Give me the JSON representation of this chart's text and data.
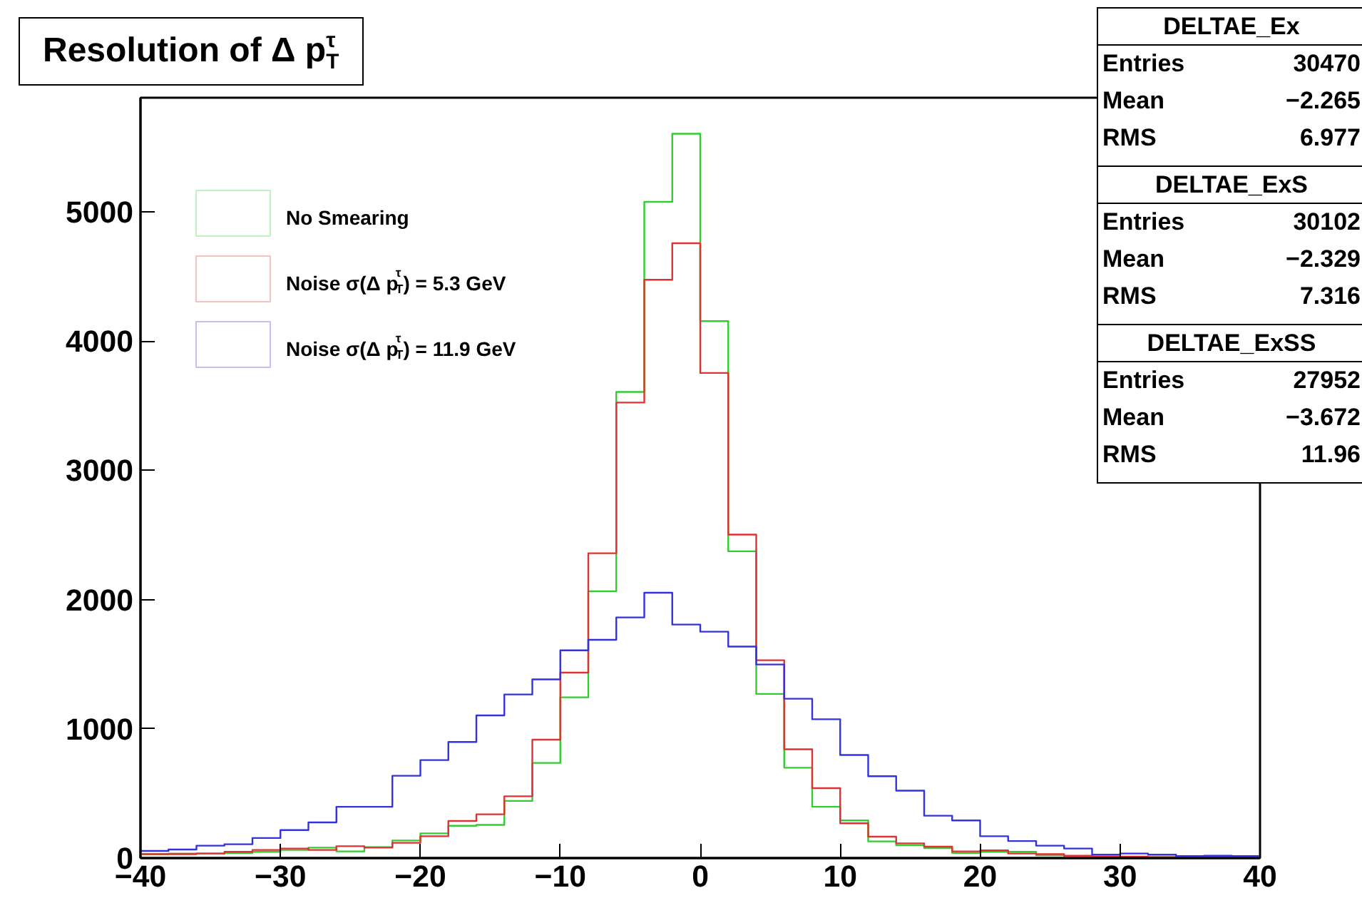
{
  "chart_data": {
    "type": "histogram",
    "title": "Resolution of Δ p$^{τ}$$_{T}$",
    "bins": [
      -40,
      -38,
      -36,
      -34,
      -32,
      -30,
      -28,
      -26,
      -24,
      -22,
      -20,
      -18,
      -16,
      -14,
      -12,
      -10,
      -8,
      -6,
      -4,
      -2,
      0,
      2,
      4,
      6,
      8,
      10,
      12,
      14,
      16,
      18,
      20,
      22,
      24,
      26,
      28,
      30,
      32,
      34,
      36,
      38,
      40
    ],
    "series": [
      {
        "name": "No Smearing",
        "color": "#33cc33",
        "values": [
          30,
          35,
          35,
          40,
          48,
          63,
          81,
          52,
          85,
          136,
          191,
          250,
          257,
          442,
          736,
          1244,
          2064,
          3607,
          5078,
          5605,
          4155,
          2374,
          1270,
          699,
          397,
          291,
          129,
          99,
          77,
          40,
          48,
          48,
          22,
          15,
          11,
          7,
          7,
          7,
          4,
          4
        ]
      },
      {
        "name": "Noise σ(Δ p$^{τ}$$_{T}$) = 5.3 GeV",
        "color": "#dd3333",
        "values": [
          30,
          30,
          35,
          48,
          63,
          74,
          63,
          92,
          81,
          118,
          169,
          287,
          339,
          478,
          916,
          1435,
          2359,
          3525,
          4475,
          4758,
          3754,
          2503,
          1531,
          842,
          541,
          269,
          166,
          114,
          88,
          52,
          59,
          35,
          30,
          18,
          11,
          11,
          7,
          7,
          7,
          7
        ]
      },
      {
        "name": "Noise σ(Δ p$^{τ}$$_{T}$) = 11.9 GeV",
        "color": "#3333dd",
        "values": [
          55,
          66,
          96,
          107,
          155,
          217,
          276,
          397,
          397,
          637,
          758,
          898,
          1104,
          1266,
          1383,
          1608,
          1689,
          1862,
          2053,
          1807,
          1752,
          1637,
          1498,
          1233,
          1074,
          798,
          633,
          522,
          328,
          291,
          169,
          132,
          96,
          74,
          26,
          35,
          26,
          15,
          18,
          15
        ]
      }
    ],
    "xlim": [
      -40,
      40
    ],
    "ylim": [
      0,
      5884
    ],
    "xticks": [
      {
        "value": -40,
        "label": "−40"
      },
      {
        "value": -30,
        "label": "−30"
      },
      {
        "value": -20,
        "label": "−20"
      },
      {
        "value": -10,
        "label": "−10"
      },
      0,
      10,
      20,
      30,
      40
    ],
    "yticks": [
      0,
      1000,
      2000,
      3000,
      4000,
      5000
    ],
    "legend": "top left",
    "grid": false,
    "annotations": [
      "DELTAE_Ex",
      "Entries 30470",
      "Mean −2.265",
      "RMS 6.977",
      "DELTAE_ExS",
      "Entries 30102",
      "Mean −2.329",
      "RMS 7.316",
      "DELTAE_ExSS",
      "Entries 27952",
      "Mean −3.672",
      "RMS 11.96"
    ]
  }
}
